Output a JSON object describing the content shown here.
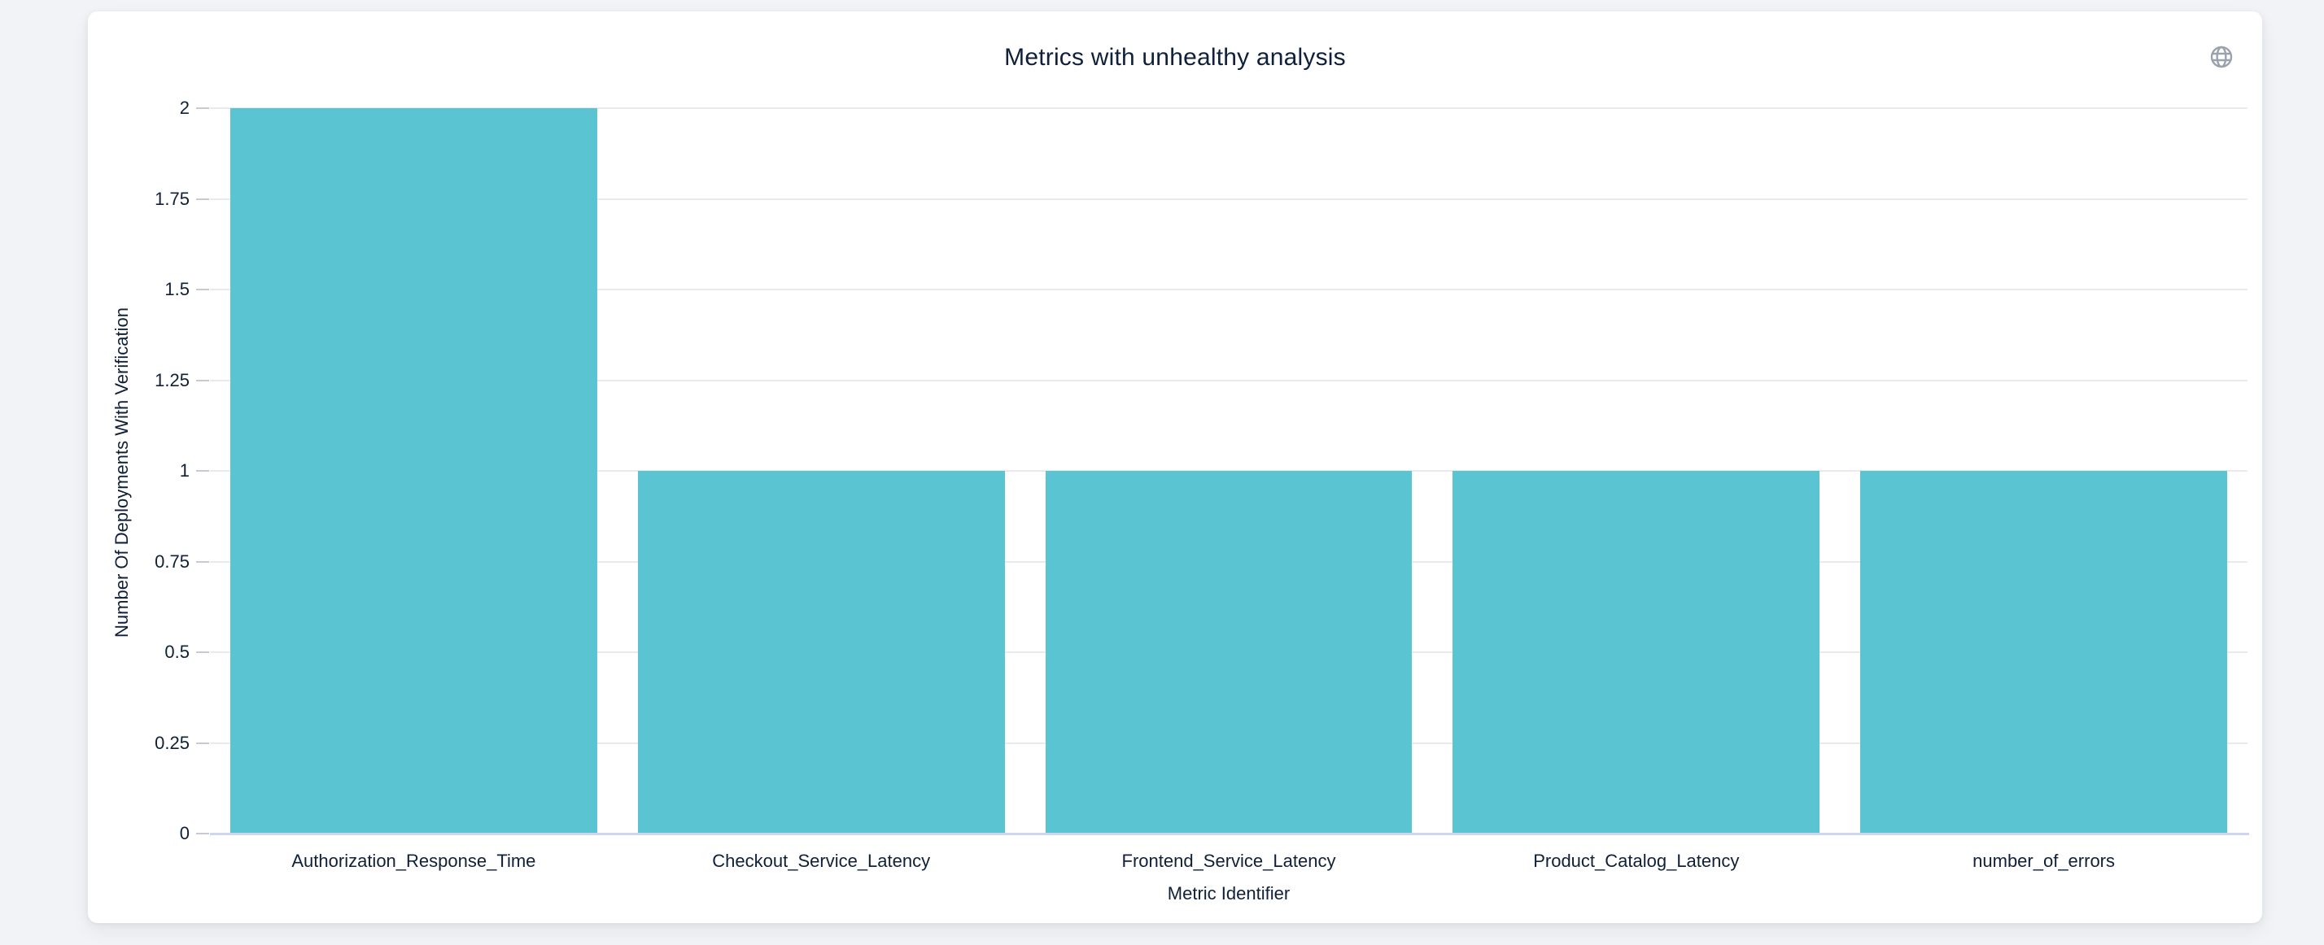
{
  "header": {
    "title": "Metrics with unhealthy analysis"
  },
  "toolbar": {
    "globe_icon": "globe"
  },
  "colors": {
    "page_bg": "#f1f3f6",
    "card_bg": "#ffffff",
    "bar": "#5bc4d3",
    "text": "#0f2038",
    "grid": "#e9eaee",
    "axis_line": "#ccd6ec",
    "tick": "#c7cad1",
    "globe_icon": "#9aa3ad"
  },
  "chart_data": {
    "type": "bar",
    "title": "Metrics with unhealthy analysis",
    "categories": [
      "Authorization_Response_Time",
      "Checkout_Service_Latency",
      "Frontend_Service_Latency",
      "Product_Catalog_Latency",
      "number_of_errors"
    ],
    "values": [
      2,
      1,
      1,
      1,
      1
    ],
    "xlabel": "Metric Identifier",
    "ylabel": "Number Of Deployments With Verification",
    "ylim": [
      0,
      2
    ],
    "ytick_labels": [
      "0",
      "0.25",
      "0.5",
      "0.75",
      "1",
      "1.25",
      "1.5",
      "1.75",
      "2"
    ],
    "ytick_values": [
      0,
      0.25,
      0.5,
      0.75,
      1,
      1.25,
      1.5,
      1.75,
      2
    ],
    "grid": true,
    "legend": "none",
    "bar_color": "#5bc4d3"
  }
}
